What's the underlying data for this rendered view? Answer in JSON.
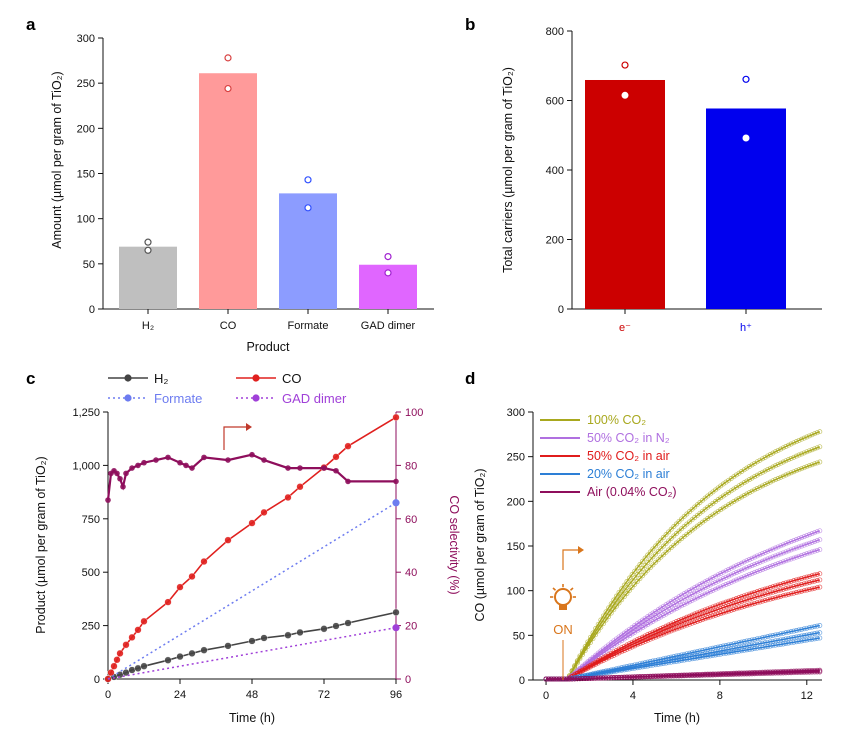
{
  "chart_data": [
    {
      "panel": "a",
      "type": "bar",
      "xlabel": "Product",
      "ylabel": "Amount (µmol per gram of TiO₂)",
      "ylim": [
        0,
        300
      ],
      "yticks": [
        0,
        50,
        100,
        150,
        200,
        250,
        300
      ],
      "categories": [
        "H₂",
        "CO",
        "Formate",
        "GAD dimer"
      ],
      "values": [
        69,
        261,
        128,
        49
      ],
      "replicates": [
        [
          74,
          65
        ],
        [
          278,
          244
        ],
        [
          143,
          112
        ],
        [
          58,
          40
        ]
      ],
      "colors": [
        "#bfbfbf",
        "#ff9a9a",
        "#8c9cff",
        "#e066ff"
      ],
      "dot_colors": [
        "#555555",
        "#d84040",
        "#3050ff",
        "#a020d0"
      ]
    },
    {
      "panel": "b",
      "type": "bar",
      "xlabel": "",
      "ylabel": "Total carriers (µmol per gram of TiO₂)",
      "ylim": [
        0,
        800
      ],
      "yticks": [
        0,
        200,
        400,
        600,
        800
      ],
      "categories": [
        "e⁻",
        "h⁺"
      ],
      "values": [
        659,
        577
      ],
      "replicates": [
        [
          702,
          615
        ],
        [
          661,
          492
        ]
      ],
      "colors": [
        "#cc0000",
        "#0000ee"
      ],
      "label_colors": [
        "#cc0000",
        "#0000ee"
      ]
    },
    {
      "panel": "c",
      "type": "line",
      "xlabel": "Time (h)",
      "ylabel": "Product (µmol per gram of TiO₂)",
      "y2label": "CO selectivity (%)",
      "xlim": [
        0,
        96
      ],
      "xticks": [
        0,
        24,
        48,
        72,
        96
      ],
      "ylim": [
        0,
        1250
      ],
      "yticks": [
        0,
        250,
        500,
        750,
        "1,000",
        "1,250"
      ],
      "ytick_values": [
        0,
        250,
        500,
        750,
        1000,
        1250
      ],
      "y2lim": [
        0,
        100
      ],
      "y2ticks": [
        0,
        20,
        40,
        60,
        80,
        100
      ],
      "legend": [
        "H₂",
        "CO",
        "Formate",
        "GAD dimer"
      ],
      "series": [
        {
          "name": "H₂",
          "color": "#444444",
          "style": "solid",
          "x": [
            0,
            2,
            4,
            6,
            8,
            10,
            12,
            20,
            24,
            28,
            32,
            40,
            48,
            52,
            60,
            64,
            72,
            76,
            80,
            96
          ],
          "y": [
            0,
            10,
            20,
            30,
            42,
            50,
            60,
            88,
            105,
            120,
            135,
            155,
            178,
            192,
            205,
            218,
            235,
            248,
            262,
            312
          ]
        },
        {
          "name": "CO",
          "color": "#e0201e",
          "style": "solid",
          "x": [
            0,
            1,
            2,
            3,
            4,
            6,
            8,
            10,
            12,
            20,
            24,
            28,
            32,
            40,
            48,
            52,
            60,
            64,
            72,
            76,
            80,
            96
          ],
          "y": [
            0,
            30,
            60,
            90,
            120,
            160,
            195,
            230,
            270,
            360,
            430,
            480,
            550,
            650,
            730,
            780,
            850,
            900,
            990,
            1040,
            1090,
            1225
          ]
        },
        {
          "name": "Formate",
          "color": "#6d7cf0",
          "style": "dotted",
          "x": [
            0,
            96
          ],
          "y": [
            0,
            825
          ]
        },
        {
          "name": "GAD dimer",
          "color": "#a040d8",
          "style": "dotted",
          "x": [
            0,
            96
          ],
          "y": [
            0,
            240
          ]
        },
        {
          "name": "CO selectivity",
          "axis": "right",
          "color": "#8e0e5c",
          "style": "solid",
          "x": [
            0,
            1,
            2,
            3,
            4,
            5,
            6,
            8,
            10,
            12,
            16,
            20,
            24,
            26,
            28,
            32,
            40,
            48,
            52,
            60,
            64,
            72,
            76,
            80,
            96
          ],
          "y": [
            67,
            77,
            78,
            77,
            75,
            72,
            77,
            79,
            80,
            81,
            82,
            83,
            81,
            80,
            79,
            83,
            82,
            84,
            82,
            79,
            79,
            79,
            78,
            74,
            74
          ]
        }
      ],
      "annotation": "arrow pointing to right axis"
    },
    {
      "panel": "d",
      "type": "line",
      "xlabel": "Time (h)",
      "ylabel": "CO (µmol per gram of TiO₂)",
      "xlim": [
        -0.6,
        12.7
      ],
      "xticks": [
        0,
        4,
        8,
        12
      ],
      "ylim": [
        0,
        300
      ],
      "yticks": [
        0,
        50,
        100,
        150,
        200,
        250,
        300
      ],
      "annotation_text": "ON",
      "legend": [
        {
          "text": "100% CO₂",
          "color": "#a8a81e"
        },
        {
          "text": "50% CO₂ in N₂",
          "color": "#b070e0"
        },
        {
          "text": "50% CO₂ in air",
          "color": "#e01c1c"
        },
        {
          "text": "20% CO₂ in air",
          "color": "#2d7fd6"
        },
        {
          "text": "Air (0.04% CO₂)",
          "color": "#8e0e5c"
        }
      ],
      "series": [
        {
          "name": "100% CO₂",
          "color": "#a8a81e",
          "endpoints": [
            277,
            260,
            243
          ]
        },
        {
          "name": "50% CO₂ in N₂",
          "color": "#b070e0",
          "endpoints": [
            166,
            156,
            145
          ]
        },
        {
          "name": "50% CO₂ in air",
          "color": "#e01c1c",
          "endpoints": [
            118,
            111,
            103
          ]
        },
        {
          "name": "20% CO₂ in air",
          "color": "#2d7fd6",
          "endpoints": [
            60,
            52,
            46
          ]
        },
        {
          "name": "Air (0.04% CO₂)",
          "color": "#8e0e5c",
          "endpoints": [
            10,
            9,
            8
          ]
        }
      ]
    }
  ],
  "panels": {
    "a": "a",
    "b": "b",
    "c": "c",
    "d": "d"
  }
}
